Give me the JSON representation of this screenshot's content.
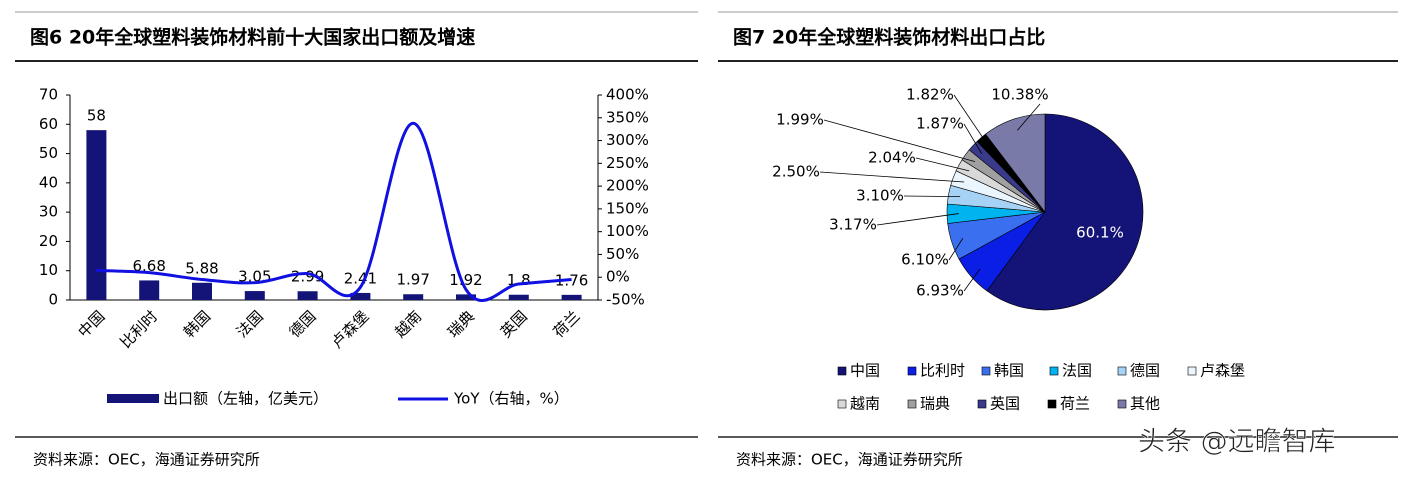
{
  "chart_data": [
    {
      "type": "combo",
      "title": "图6  20年全球塑料装饰材料前十大国家出口额及增速",
      "source": "资料来源：OEC，海通证券研究所",
      "categories": [
        "中国",
        "比利时",
        "韩国",
        "法国",
        "德国",
        "卢森堡",
        "越南",
        "瑞典",
        "英国",
        "荷兰"
      ],
      "series": [
        {
          "name": "出口额（左轴，亿美元）",
          "type": "bar",
          "color": "#141478",
          "values": [
            58,
            6.68,
            5.88,
            3.05,
            2.99,
            2.41,
            1.97,
            1.92,
            1.8,
            1.76
          ]
        },
        {
          "name": "YoY（右轴，%）",
          "type": "line",
          "axis": "y2",
          "color": "#1010e0",
          "values": [
            15,
            10,
            -5,
            -12,
            8,
            -22,
            338,
            -27,
            -15,
            -5
          ]
        }
      ],
      "ylim": [
        0,
        70
      ],
      "yticks": [
        0,
        10,
        20,
        30,
        40,
        50,
        60,
        70
      ],
      "y2lim": [
        -50,
        400
      ],
      "y2ticks": [
        {
          "value": -50,
          "label": "-50%"
        },
        {
          "value": 0,
          "label": "0%"
        },
        {
          "value": 50,
          "label": "50%"
        },
        {
          "value": 100,
          "label": "100%"
        },
        {
          "value": 150,
          "label": "150%"
        },
        {
          "value": 200,
          "label": "200%"
        },
        {
          "value": 250,
          "label": "250%"
        },
        {
          "value": 300,
          "label": "300%"
        },
        {
          "value": 350,
          "label": "350%"
        },
        {
          "value": 400,
          "label": "400%"
        }
      ],
      "grid": false,
      "legend": "bottom"
    },
    {
      "type": "pie",
      "title": "图7  20年全球塑料装饰材料出口占比",
      "source": "资料来源：OEC，海通证券研究所",
      "categories": [
        "中国",
        "比利时",
        "韩国",
        "法国",
        "德国",
        "卢森堡",
        "越南",
        "瑞典",
        "英国",
        "荷兰",
        "其他"
      ],
      "values": [
        60.1,
        6.93,
        6.1,
        3.17,
        3.1,
        2.5,
        2.04,
        1.99,
        1.87,
        1.82,
        10.38
      ],
      "value_labels": [
        "60.1%",
        "6.93%",
        "6.10%",
        "3.17%",
        "3.10%",
        "2.50%",
        "2.04%",
        "1.99%",
        "1.87%",
        "1.82%",
        "10.38%"
      ],
      "colors": [
        "#141478",
        "#0a1ee6",
        "#3a6ff0",
        "#00b4f0",
        "#a6d2f5",
        "#eaf5fd",
        "#d9d9d9",
        "#a0a0a0",
        "#3a3a8a",
        "#000000",
        "#7a7aa8"
      ],
      "legend": "bottom"
    }
  ],
  "watermark": "头条 @远瞻智库"
}
